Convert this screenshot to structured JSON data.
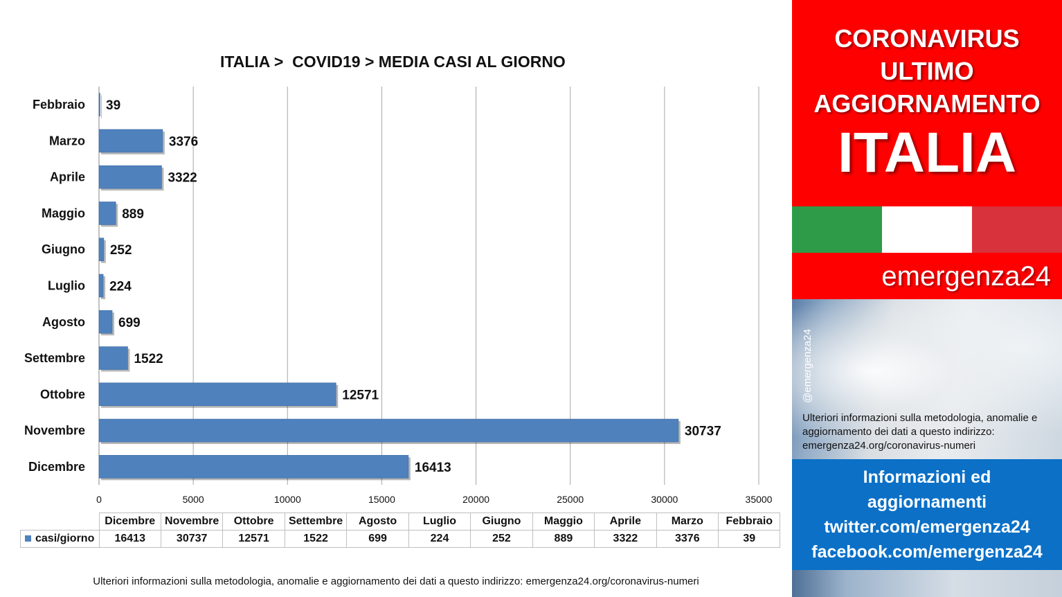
{
  "chart_data": {
    "type": "bar",
    "orientation": "horizontal",
    "title": "ITALIA >  COVID19 > MEDIA CASI AL GIORNO",
    "categories": [
      "Dicembre",
      "Novembre",
      "Ottobre",
      "Settembre",
      "Agosto",
      "Luglio",
      "Giugno",
      "Maggio",
      "Aprile",
      "Marzo",
      "Febbraio"
    ],
    "series": [
      {
        "name": "casi/giorno",
        "values": [
          16413,
          30737,
          12571,
          1522,
          699,
          224,
          252,
          889,
          3322,
          3376,
          39
        ]
      }
    ],
    "xlim": [
      0,
      35000
    ],
    "x_ticks": [
      0,
      5000,
      10000,
      15000,
      20000,
      25000,
      30000,
      35000
    ],
    "grid": "vertical",
    "data_labels": true,
    "data_table": true,
    "bar_color": "#4f81bd"
  },
  "panel": {
    "heading_lines": [
      "CORONAVIRUS",
      "ULTIMO",
      "AGGIORNAMENTO"
    ],
    "country": "ITALIA",
    "flag_colors": [
      "#2e9b48",
      "#ffffff",
      "#d8323c"
    ],
    "brand": "emergenza24",
    "handle": "@emergenza24",
    "note": "Ulteriori informazioni sulla metodologia, anomalie e aggiornamento dei dati a questo indirizzo: emergenza24.org/coronavirus-numeri",
    "info_lines": [
      "Informazioni ed",
      "aggiornamenti",
      "twitter.com/emergenza24",
      "facebook.com/emergenza24"
    ]
  },
  "footer_note": "Ulteriori informazioni sulla metodologia, anomalie e aggiornamento dei dati a questo indirizzo: emergenza24.org/coronavirus-numeri"
}
